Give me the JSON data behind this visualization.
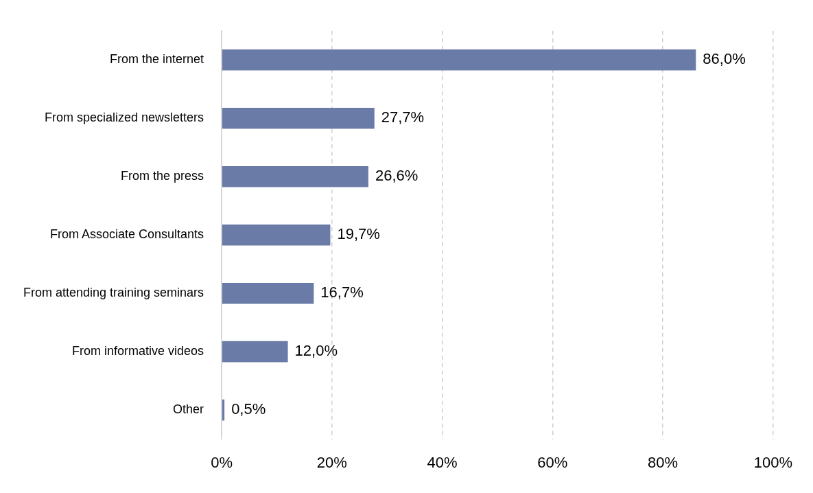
{
  "chart_data": {
    "type": "bar",
    "orientation": "horizontal",
    "categories": [
      "From the internet",
      "From specialized newsletters",
      "From the press",
      "From Associate Consultants",
      "From attending training seminars",
      "From informative videos",
      "Other"
    ],
    "values": [
      86.0,
      27.7,
      26.6,
      19.7,
      16.7,
      12.0,
      0.5
    ],
    "value_labels": [
      "86,0%",
      "27,7%",
      "26,6%",
      "19,7%",
      "16,7%",
      "12,0%",
      "0,5%"
    ],
    "color": "#6a7ba8",
    "xlim": [
      0,
      100
    ],
    "xticks": [
      {
        "value": 0,
        "label": "0%"
      },
      {
        "value": 20,
        "label": "20%"
      },
      {
        "value": 40,
        "label": "40%"
      },
      {
        "value": 60,
        "label": "60%"
      },
      {
        "value": 80,
        "label": "80%"
      },
      {
        "value": 100,
        "label": "100%"
      }
    ],
    "grid": "x",
    "legend": false
  }
}
